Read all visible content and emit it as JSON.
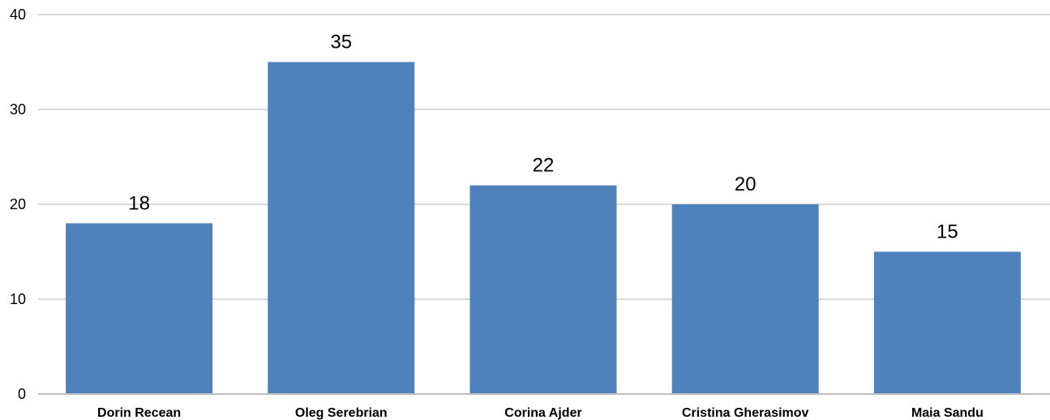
{
  "chart_data": {
    "type": "bar",
    "categories": [
      "Dorin Recean",
      "Oleg Serebrian",
      "Corina Ajder",
      "Cristina Gherasimov",
      "Maia Sandu"
    ],
    "values": [
      18,
      35,
      22,
      20,
      15
    ],
    "ylim": [
      0,
      40
    ],
    "yticks": [
      0,
      10,
      20,
      30,
      40
    ],
    "grid": true,
    "legend": "none",
    "bar_color": "#4f81bd",
    "data_labels": true
  }
}
